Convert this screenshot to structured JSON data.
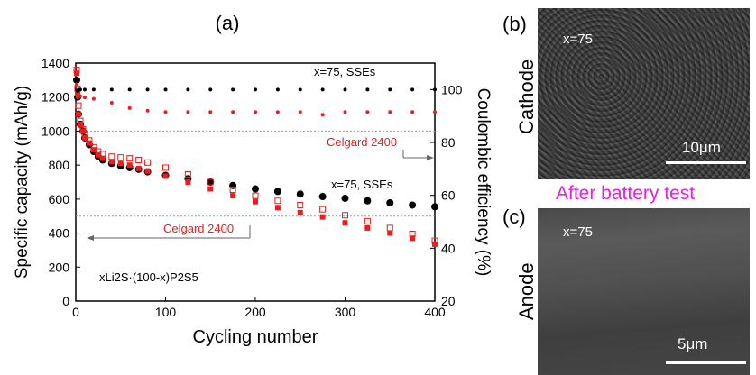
{
  "panel_a_label": "(a)",
  "panel_b_label": "(b)",
  "panel_c_label": "(c)",
  "after_battery_test": "After battery test",
  "sem_cathode": {
    "side_label": "Cathode",
    "sample_label": "x=75",
    "scale_text": "10μm"
  },
  "sem_anode": {
    "side_label": "Anode",
    "sample_label": "x=75",
    "scale_text": "5μm"
  },
  "colors": {
    "sse": "#000000",
    "celgard": "#ee1c1c",
    "after_test": "#e81ee0"
  },
  "chart_data": {
    "type": "scatter",
    "xlabel": "Cycling number",
    "ylabel_left": "Specific capacity (mAh/g)",
    "ylabel_right": "Coulombic efficiency (%)",
    "xlim": [
      0,
      400
    ],
    "ylim_left": [
      0,
      1400
    ],
    "ylim_right": [
      20,
      110
    ],
    "x_ticks": [
      "0",
      "100",
      "200",
      "300",
      "400"
    ],
    "y_left_ticks": [
      "0",
      "200",
      "400",
      "600",
      "800",
      "1000",
      "1200",
      "1400"
    ],
    "y_right_ticks": [
      "20",
      "40",
      "60",
      "80",
      "100"
    ],
    "formula": "xLi2S·(100-x)P2S5",
    "annotations": {
      "sse_ce": "x=75, SSEs",
      "celgard_ce": "Celgard 2400",
      "sse_cap": "x=75, SSEs",
      "celgard_cap": "Celgard 2400"
    },
    "series": [
      {
        "name": "x=75, SSEs",
        "axis": "left",
        "x": [
          1,
          2,
          3,
          5,
          8,
          10,
          15,
          20,
          25,
          30,
          40,
          50,
          60,
          70,
          80,
          100,
          125,
          150,
          175,
          200,
          225,
          250,
          275,
          300,
          325,
          350,
          375,
          400
        ],
        "values": [
          1300,
          1200,
          1100,
          1040,
          1000,
          960,
          920,
          880,
          850,
          830,
          810,
          795,
          785,
          775,
          760,
          740,
          720,
          700,
          680,
          660,
          645,
          630,
          615,
          605,
          590,
          578,
          565,
          555
        ]
      },
      {
        "name": "Celgard 2400",
        "axis": "left",
        "x": [
          1,
          2,
          3,
          5,
          8,
          10,
          15,
          20,
          25,
          30,
          40,
          50,
          60,
          70,
          80,
          100,
          125,
          150,
          175,
          200,
          225,
          250,
          275,
          300,
          325,
          350,
          375,
          400
        ],
        "values": [
          1340,
          1220,
          1100,
          1040,
          1000,
          960,
          930,
          890,
          860,
          840,
          820,
          810,
          800,
          780,
          765,
          735,
          700,
          660,
          620,
          585,
          550,
          520,
          495,
          460,
          430,
          400,
          370,
          335
        ]
      },
      {
        "name": "Celgard 2400",
        "axis": "left",
        "markers": "open",
        "x": [
          1,
          2,
          3,
          5,
          8,
          10,
          15,
          20,
          25,
          30,
          40,
          50,
          60,
          70,
          80,
          100,
          125,
          150,
          175,
          200,
          225,
          250,
          275,
          300,
          325,
          350,
          375,
          400
        ],
        "values": [
          1360,
          1250,
          1150,
          1060,
          1010,
          980,
          945,
          905,
          880,
          865,
          850,
          845,
          840,
          830,
          815,
          785,
          745,
          700,
          655,
          620,
          590,
          565,
          540,
          505,
          470,
          430,
          395,
          355
        ]
      },
      {
        "name": "x=75, SSEs",
        "axis": "right",
        "x": [
          1,
          2,
          3,
          5,
          10,
          20,
          40,
          60,
          80,
          100,
          125,
          150,
          175,
          200,
          225,
          250,
          275,
          300,
          325,
          350,
          375,
          400
        ],
        "values": [
          97,
          99.5,
          100,
          100,
          100,
          100,
          100,
          100,
          100,
          100,
          100,
          100,
          100,
          100,
          100,
          100,
          100,
          100,
          100,
          100,
          100,
          100
        ]
      },
      {
        "name": "Celgard 2400",
        "axis": "right",
        "x": [
          1,
          2,
          3,
          5,
          10,
          20,
          40,
          60,
          80,
          100,
          125,
          150,
          175,
          200,
          225,
          250,
          275,
          300,
          325,
          350,
          375,
          400
        ],
        "values": [
          102,
          97,
          97.5,
          97.5,
          97,
          96.5,
          95,
          93,
          92,
          91.5,
          91.5,
          91.5,
          91.5,
          91.5,
          91.5,
          91.5,
          90.5,
          91.5,
          91.5,
          91.5,
          91.5,
          91.5
        ]
      }
    ]
  }
}
